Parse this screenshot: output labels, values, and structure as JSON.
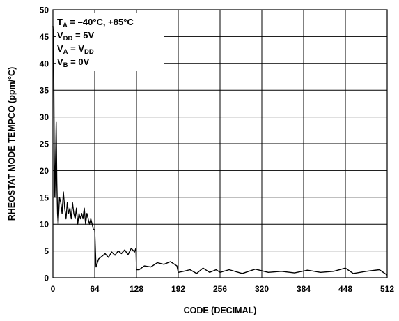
{
  "chart_data": {
    "type": "line",
    "title": "",
    "xlabel": "CODE (DECIMAL)",
    "ylabel": "RHEOSTAT MODE TEMPCO (ppm/°C)",
    "xlim": [
      0,
      512
    ],
    "ylim": [
      0,
      50
    ],
    "x_ticks": [
      0,
      64,
      128,
      192,
      256,
      320,
      384,
      448,
      512
    ],
    "y_ticks": [
      0,
      5,
      10,
      15,
      20,
      25,
      30,
      35,
      40,
      45,
      50
    ],
    "grid": true,
    "legend": {
      "position": "top-left",
      "lines": [
        {
          "main": "T",
          "sub": "A",
          "rest": " = –40°C, +85°C"
        },
        {
          "main": "V",
          "sub": "DD",
          "rest": " = 5V"
        },
        {
          "main": "V",
          "sub": "A",
          "rest": " = V",
          "sub2": "DD"
        },
        {
          "main": "V",
          "sub": "B",
          "rest": " = 0V"
        }
      ]
    },
    "series": [
      {
        "color": "#000000",
        "x": [
          0,
          1,
          2,
          3,
          4,
          5,
          6,
          7,
          8,
          10,
          12,
          14,
          16,
          18,
          20,
          22,
          24,
          26,
          28,
          30,
          32,
          34,
          36,
          38,
          40,
          42,
          44,
          46,
          48,
          50,
          52,
          54,
          56,
          58,
          60,
          62,
          63,
          64,
          66,
          70,
          75,
          80,
          85,
          90,
          95,
          100,
          105,
          110,
          115,
          120,
          125,
          127,
          128,
          132,
          140,
          150,
          160,
          170,
          180,
          190,
          192,
          200,
          210,
          220,
          230,
          240,
          250,
          256,
          270,
          290,
          310,
          330,
          350,
          370,
          390,
          410,
          430,
          448,
          460,
          480,
          500,
          512
        ],
        "y": [
          47,
          45,
          24,
          15,
          22,
          29,
          18,
          12,
          10,
          15,
          14,
          12,
          16,
          13,
          11,
          14,
          12,
          13,
          11,
          14,
          12,
          11,
          13,
          10,
          12,
          11,
          12,
          11,
          13,
          10,
          12,
          11,
          10,
          11,
          10,
          9,
          9,
          9,
          2,
          3.5,
          4,
          4.5,
          3.8,
          4.8,
          4.2,
          5,
          4.5,
          5.2,
          4.3,
          5.5,
          4.8,
          5.5,
          1.5,
          1.5,
          2.2,
          2.0,
          2.8,
          2.5,
          3.0,
          2.2,
          1.0,
          1.2,
          1.5,
          0.8,
          1.8,
          1.0,
          1.5,
          1.0,
          1.5,
          0.8,
          1.6,
          1.0,
          1.2,
          0.9,
          1.4,
          1.0,
          1.2,
          1.8,
          0.8,
          1.2,
          1.5,
          0.5
        ]
      }
    ]
  }
}
